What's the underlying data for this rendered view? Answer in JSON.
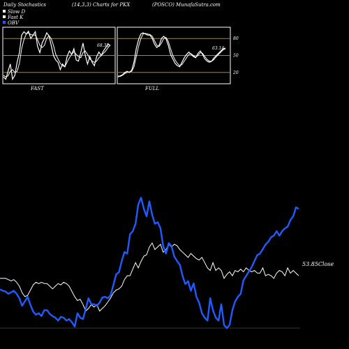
{
  "header": {
    "left": "Daily Stochastics",
    "center": "(14,3,3) Charts for PKX",
    "right": "(POSCO) MunafaSutra.com"
  },
  "legend": [
    {
      "label": "Slow  D",
      "color": "#ffffff"
    },
    {
      "label": "Fast K",
      "color": "#ffffff"
    },
    {
      "label": "OBV",
      "color": "#1f5cff"
    }
  ],
  "colors": {
    "background": "#000000",
    "stoch": "#ffffff",
    "obv": "#1f5cff",
    "close": "#ffffff",
    "level": "#b8860b"
  },
  "chart_data": [
    {
      "type": "line",
      "name": "FAST",
      "title": "FAST",
      "ylim": [
        0,
        100
      ],
      "yticks": [
        20,
        50,
        80
      ],
      "last_value_label": "68.32",
      "series": [
        {
          "name": "Fast K",
          "values": [
            12,
            8,
            22,
            35,
            8,
            15,
            38,
            55,
            86,
            92,
            88,
            93,
            80,
            86,
            92,
            66,
            55,
            72,
            80,
            90,
            85,
            68,
            50,
            42,
            38,
            25,
            35,
            30,
            48,
            58,
            52,
            62,
            42,
            40,
            55,
            72,
            50,
            35,
            48,
            38,
            32,
            48,
            56,
            50,
            58,
            64,
            70,
            68
          ]
        },
        {
          "name": "Slow  D",
          "values": [
            15,
            12,
            14,
            22,
            25,
            20,
            22,
            36,
            62,
            78,
            88,
            90,
            87,
            86,
            86,
            78,
            68,
            64,
            68,
            80,
            85,
            80,
            68,
            52,
            44,
            36,
            32,
            30,
            38,
            46,
            52,
            57,
            52,
            48,
            46,
            55,
            58,
            52,
            44,
            40,
            38,
            40,
            46,
            50,
            54,
            58,
            64,
            68
          ]
        }
      ]
    },
    {
      "type": "line",
      "name": "FULL",
      "title": "FULL",
      "ylim": [
        0,
        100
      ],
      "yticks": [
        20,
        50,
        80
      ],
      "last_value_label": "63.14",
      "series": [
        {
          "name": "K",
          "values": [
            12,
            14,
            16,
            20,
            22,
            20,
            24,
            38,
            62,
            78,
            88,
            90,
            88,
            86,
            86,
            80,
            70,
            64,
            68,
            80,
            84,
            80,
            68,
            52,
            44,
            36,
            32,
            30,
            38,
            46,
            52,
            56,
            52,
            48,
            46,
            54,
            58,
            52,
            44,
            40,
            38,
            40,
            46,
            50,
            54,
            58,
            62,
            63
          ]
        },
        {
          "name": "D",
          "values": [
            14,
            13,
            15,
            18,
            20,
            21,
            22,
            30,
            48,
            66,
            80,
            88,
            89,
            88,
            87,
            84,
            76,
            68,
            66,
            72,
            80,
            82,
            75,
            62,
            50,
            42,
            36,
            32,
            34,
            40,
            46,
            52,
            53,
            50,
            47,
            50,
            55,
            54,
            48,
            43,
            40,
            40,
            43,
            48,
            52,
            56,
            60,
            62
          ]
        }
      ]
    },
    {
      "type": "line",
      "name": "OBV and Close",
      "last_value_label": "53.85",
      "last_value_suffix": "Close",
      "series": [
        {
          "name": "Close",
          "values": [
            58,
            58,
            58,
            57,
            56,
            57,
            55,
            52,
            47,
            44,
            45,
            49,
            53,
            55,
            54,
            55,
            54,
            54,
            52,
            50,
            52,
            54,
            53,
            55,
            54,
            52,
            48,
            44,
            41,
            42,
            38,
            33,
            35,
            38,
            36,
            38,
            33,
            35,
            37,
            40,
            43,
            47,
            49,
            50,
            52,
            57,
            60,
            60,
            65,
            70,
            66,
            71,
            75,
            76,
            82,
            85,
            80,
            82,
            84,
            78,
            80,
            84,
            82,
            84,
            83,
            80,
            78,
            76,
            74,
            77,
            75,
            73,
            72,
            74,
            70,
            66,
            64,
            70,
            64,
            66,
            64,
            58,
            61,
            63,
            60,
            64,
            63,
            65,
            63,
            66,
            64,
            63,
            64,
            62,
            62,
            66,
            60,
            61,
            60,
            58,
            62,
            64,
            63,
            60,
            66,
            62,
            64,
            62,
            60
          ]
        },
        {
          "name": "OBV",
          "values": [
            22,
            20,
            19,
            16,
            18,
            20,
            16,
            10,
            0,
            6,
            12,
            1,
            -8,
            -12,
            -10,
            -14,
            -6,
            -6,
            -11,
            -14,
            -16,
            -20,
            -15,
            -16,
            -20,
            -18,
            -22,
            -28,
            -10,
            -16,
            -18,
            -4,
            10,
            2,
            2,
            0,
            4,
            11,
            12,
            10,
            14,
            28,
            42,
            45,
            60,
            72,
            70,
            96,
            100,
            110,
            136,
            145,
            130,
            120,
            140,
            122,
            110,
            112,
            104,
            80,
            70,
            84,
            80,
            66,
            60,
            55,
            40,
            29,
            33,
            20,
            30,
            12,
            4,
            -10,
            -16,
            -20,
            10,
            -6,
            -16,
            -20,
            2,
            -26,
            -30,
            -26,
            -6,
            6,
            12,
            16,
            34,
            40,
            46,
            52,
            60,
            68,
            70,
            76,
            82,
            86,
            92,
            94,
            100,
            94,
            100,
            104,
            106,
            115,
            120,
            132,
            130
          ]
        }
      ]
    }
  ]
}
